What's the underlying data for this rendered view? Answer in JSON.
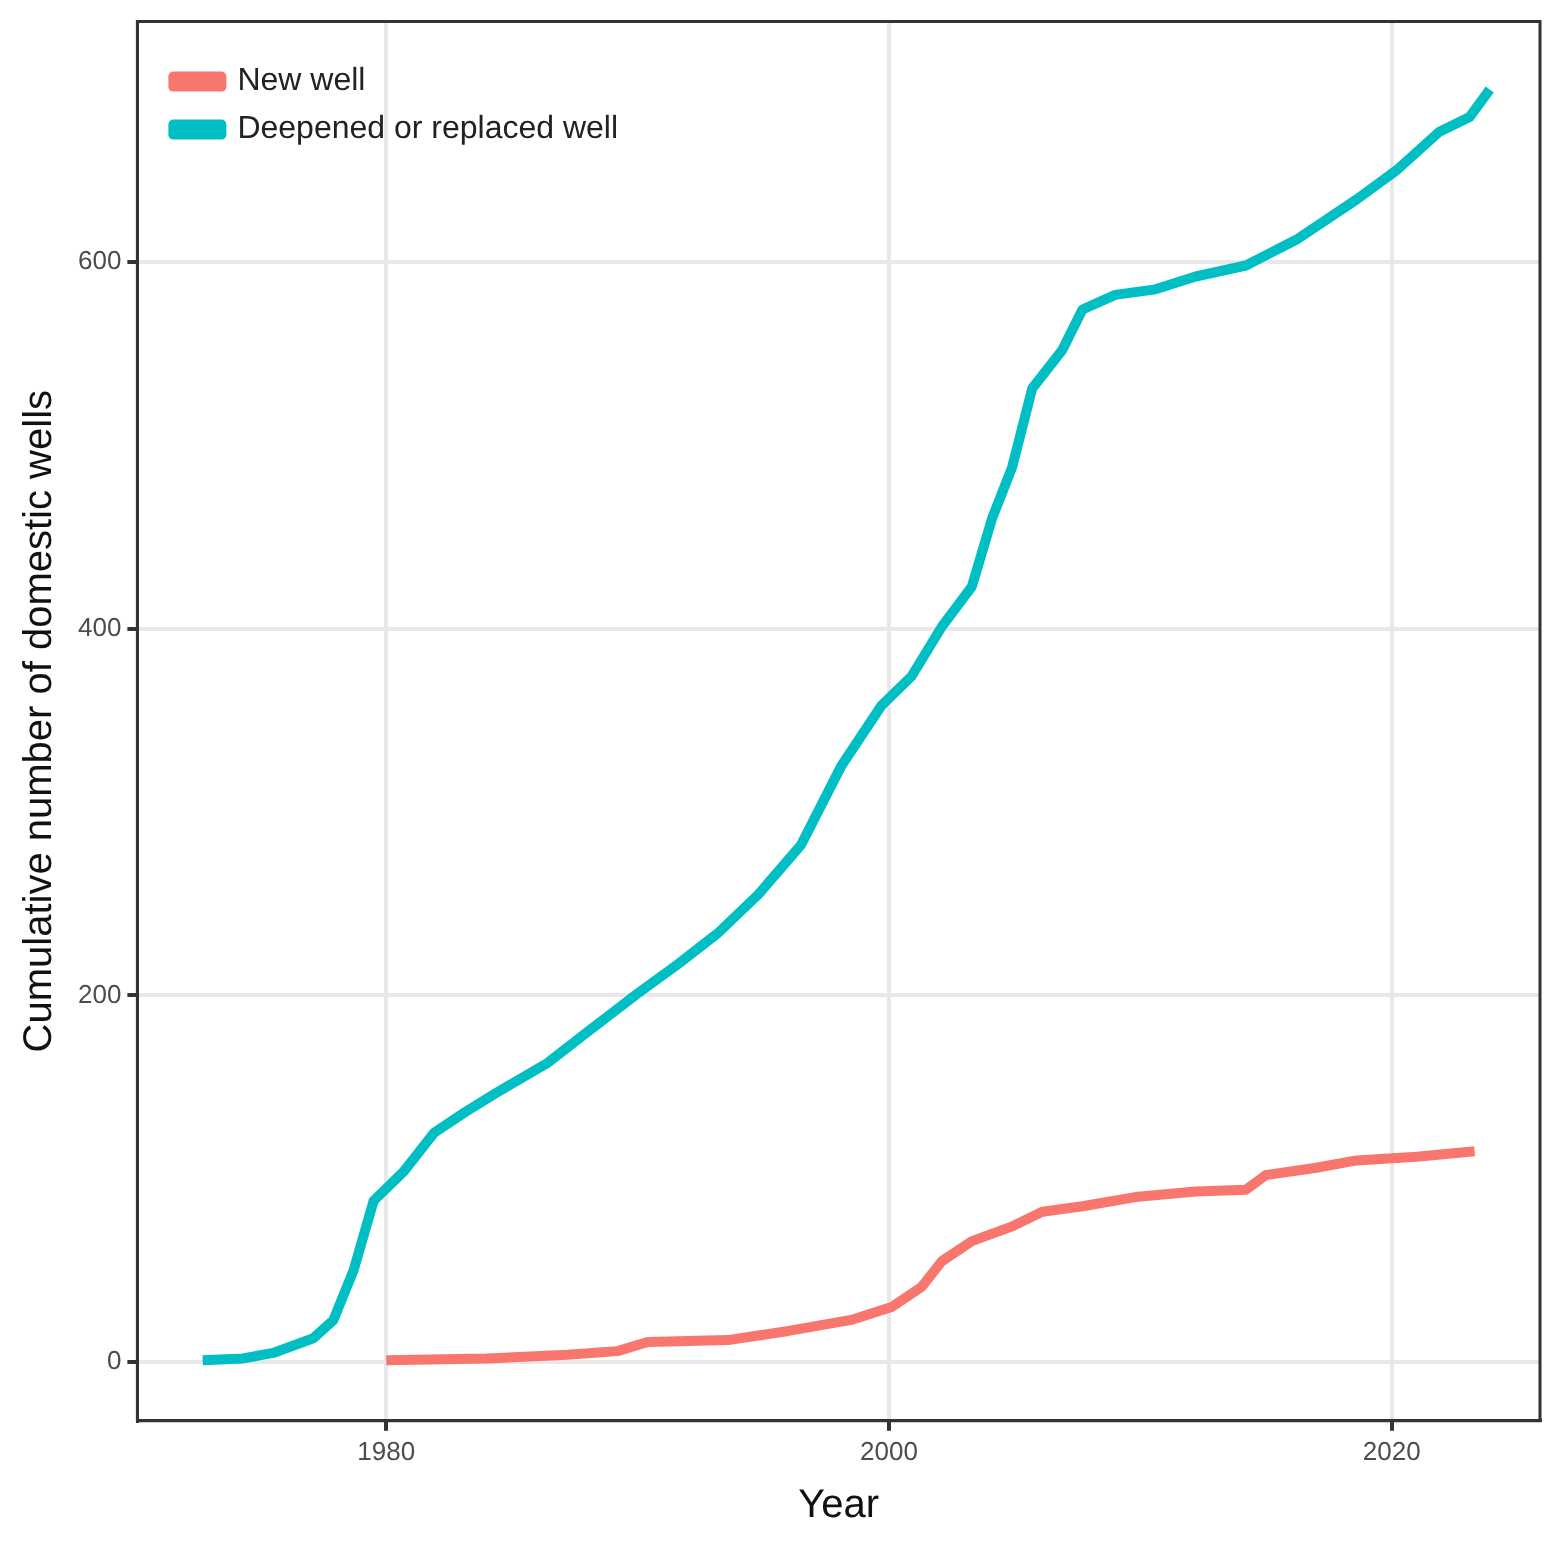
{
  "chart_data": {
    "type": "line",
    "xlabel": "Year",
    "ylabel": "Cumulative number of domestic wells",
    "xlim": [
      1970.1,
      2025.9
    ],
    "ylim": [
      -32,
      731
    ],
    "xticks": [
      1980,
      2000,
      2020
    ],
    "yticks": [
      0,
      200,
      400,
      600
    ],
    "grid": true,
    "legend": "top left",
    "marker": "none",
    "line_style": "solid",
    "series": [
      {
        "name": "New well",
        "color": "#f8766d",
        "x": [
          1980,
          1984,
          1987.2,
          1989.2,
          1990.4,
          1993.6,
          1996,
          1998.5,
          2000.1,
          2001.3,
          2002.1,
          2003.3,
          2004.9,
          2006.1,
          2007.7,
          2009.8,
          2012.2,
          2014.2,
          2015,
          2017,
          2018.6,
          2021,
          2023.3
        ],
        "values": [
          1,
          2,
          4,
          6,
          11,
          12,
          17,
          23,
          30,
          41,
          55,
          66,
          74,
          82,
          85,
          90,
          93,
          94,
          102,
          106,
          110,
          112,
          115
        ]
      },
      {
        "name": "Deepened or replaced well",
        "color": "#00bfc4",
        "x": [
          1972.7,
          1974.3,
          1975.5,
          1977.1,
          1977.9,
          1978.7,
          1979.5,
          1980.7,
          1981.9,
          1983.1,
          1984.4,
          1986.4,
          1988,
          1990,
          1991.6,
          1993.2,
          1994.8,
          1996.5,
          1998.1,
          1999.7,
          2000.9,
          2002.1,
          2003.3,
          2004.1,
          2004.9,
          2005.7,
          2006.9,
          2007.7,
          2009,
          2010.6,
          2012.2,
          2014.2,
          2016.2,
          2018.6,
          2020.2,
          2021.9,
          2023.1,
          2023.9
        ],
        "values": [
          1,
          2,
          5,
          13,
          23,
          50,
          88,
          104,
          125,
          136,
          147,
          163,
          180,
          201,
          217,
          234,
          255,
          282,
          325,
          358,
          374,
          401,
          423,
          460,
          488,
          531,
          552,
          574,
          582,
          585,
          592,
          598,
          612,
          634,
          650,
          671,
          679,
          694
        ]
      }
    ]
  }
}
